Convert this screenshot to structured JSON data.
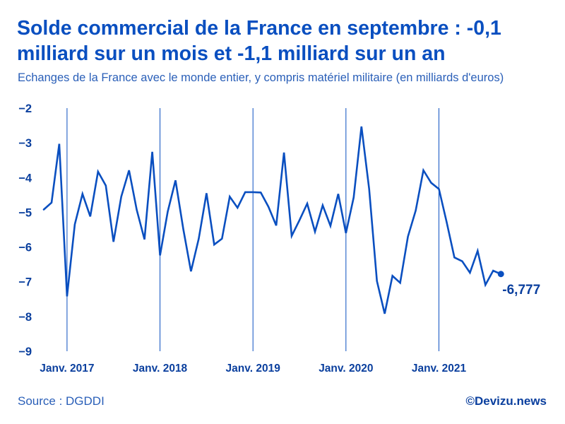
{
  "title": "Solde commercial de la France en septembre : -0,1 milliard sur un mois et -1,1 milliard sur un an",
  "subtitle": "Echanges de la France avec le monde entier, y compris matériel militaire (en milliards d'euros)",
  "source": "Source : DGDDI",
  "credit": "©Devizu.news",
  "colors": {
    "line": "#0a4fc0",
    "text": "#2a5fb8",
    "title": "#0a4fc0",
    "axis": "#0a3f9e"
  },
  "chart_data": {
    "type": "line",
    "title": "Solde commercial de la France en septembre : -0,1 milliard sur un mois et -1,1 milliard sur un an",
    "ylabel": "milliards d'euros",
    "xlabel": "",
    "ylim": [
      -9,
      -2
    ],
    "yticks": [
      -2,
      -3,
      -4,
      -5,
      -6,
      -7,
      -8,
      -9
    ],
    "ytick_labels": [
      "−2",
      "−3",
      "−4",
      "−5",
      "−6",
      "−7",
      "−8",
      "−9"
    ],
    "x_start": "2016-10",
    "x_end": "2021-09",
    "xticks": [
      {
        "month_index": 3,
        "label": "Janv. 2017"
      },
      {
        "month_index": 15,
        "label": "Janv. 2018"
      },
      {
        "month_index": 27,
        "label": "Janv. 2019"
      },
      {
        "month_index": 39,
        "label": "Janv. 2020"
      },
      {
        "month_index": 51,
        "label": "Janv. 2021"
      }
    ],
    "grid": "vertical lines at January",
    "series": [
      {
        "name": "Solde commercial",
        "values": [
          -4.92,
          -4.72,
          -3.03,
          -7.42,
          -5.35,
          -4.47,
          -5.12,
          -3.83,
          -4.23,
          -5.85,
          -4.55,
          -3.79,
          -4.93,
          -5.78,
          -3.26,
          -6.24,
          -4.98,
          -4.08,
          -5.48,
          -6.7,
          -5.76,
          -4.45,
          -5.93,
          -5.76,
          -4.55,
          -4.87,
          -4.42,
          -4.42,
          -4.43,
          -4.84,
          -5.38,
          -3.28,
          -5.68,
          -5.23,
          -4.75,
          -5.56,
          -4.8,
          -5.39,
          -4.47,
          -5.6,
          -4.57,
          -2.53,
          -4.33,
          -6.98,
          -7.92,
          -6.83,
          -7.03,
          -5.7,
          -4.95,
          -3.79,
          -4.15,
          -4.33,
          -5.28,
          -6.3,
          -6.41,
          -6.74,
          -6.11,
          -7.09,
          -6.68,
          -6.777
        ]
      }
    ],
    "annotations": [
      {
        "label": "-6,777",
        "at_month_index": 59,
        "value": -6.777
      }
    ]
  }
}
